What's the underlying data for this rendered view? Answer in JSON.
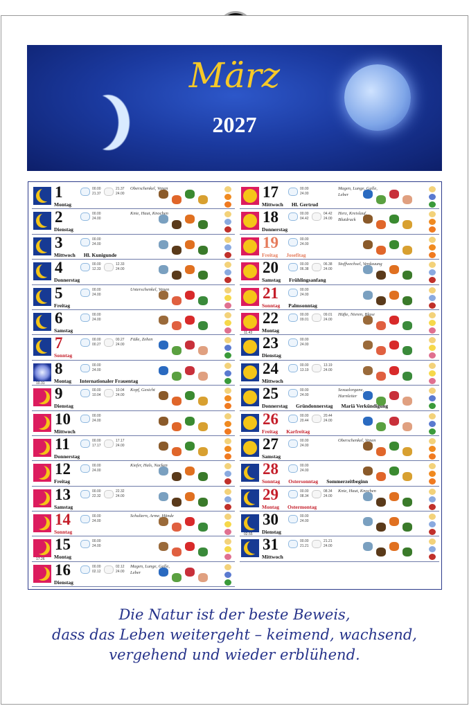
{
  "header": {
    "month": "März",
    "year": "2027"
  },
  "quote": [
    "Die Natur ist der beste Beweis,",
    "dass das Leben weitergeht – keimend, wachsend,",
    "vergehend und wieder erblühend."
  ],
  "colors": {
    "banner": "#1b3aa0",
    "title": "#f6c928",
    "phase_blue": "#173a93",
    "phase_pink": "#dc1c5e",
    "holiday_red": "#c41e2a",
    "quote": "#26338a"
  },
  "days": [
    {
      "d": "1",
      "wd": "Montag",
      "ph": "blue",
      "t1": [
        "00.00",
        "21.37"
      ],
      "t2": [
        "21.37",
        "24.00"
      ],
      "body": "Oberschenkel, Venen",
      "el": "fire"
    },
    {
      "d": "2",
      "wd": "Dienstag",
      "ph": "blue",
      "t1": [
        "00.00",
        "24.00"
      ],
      "body": "Knie, Haut, Knochen",
      "el": "earth"
    },
    {
      "d": "3",
      "wd": "Mittwoch",
      "ph": "blue",
      "hol": [
        {
          "text": "Hl. Kunigunde"
        }
      ],
      "t1": [
        "00.00",
        "24.00"
      ],
      "el": "earth"
    },
    {
      "d": "4",
      "wd": "Donnerstag",
      "ph": "blue",
      "t1": [
        "00.00",
        "12.33"
      ],
      "t2": [
        "12.33",
        "24.00"
      ],
      "el": "earth"
    },
    {
      "d": "5",
      "wd": "Freitag",
      "ph": "blue",
      "t1": [
        "00.00",
        "24.00"
      ],
      "body": "Unterschenkel, Venen",
      "el": "air"
    },
    {
      "d": "6",
      "wd": "Samstag",
      "ph": "blue",
      "t1": [
        "00.00",
        "24.00"
      ],
      "el": "air"
    },
    {
      "d": "7",
      "wd": "Sonntag",
      "red": "red",
      "ph": "blue",
      "t1": [
        "00.00",
        "00.27"
      ],
      "t2": [
        "00.27",
        "24.00"
      ],
      "body": "Füße, Zehen",
      "el": "water"
    },
    {
      "d": "8",
      "wd": "Montag",
      "ph": "full",
      "mt": "10.31",
      "hol": [
        {
          "text": "Internationaler Frauentag"
        }
      ],
      "t1": [
        "00.00",
        "24.00"
      ],
      "el": "water"
    },
    {
      "d": "9",
      "wd": "Dienstag",
      "ph": "pink",
      "t1": [
        "00.00",
        "10.04"
      ],
      "t2": [
        "10.04",
        "24.00"
      ],
      "body": "Kopf, Gesicht",
      "el": "fire"
    },
    {
      "d": "10",
      "wd": "Mittwoch",
      "ph": "pink",
      "t1": [
        "00.00",
        "24.00"
      ],
      "el": "fire"
    },
    {
      "d": "11",
      "wd": "Donnerstag",
      "ph": "pink",
      "t1": [
        "00.00",
        "17.17"
      ],
      "t2": [
        "17.17",
        "24.00"
      ],
      "el": "fire"
    },
    {
      "d": "12",
      "wd": "Freitag",
      "ph": "pink",
      "t1": [
        "00.00",
        "24.00"
      ],
      "body": "Kiefer, Hals, Nacken",
      "el": "earth"
    },
    {
      "d": "13",
      "wd": "Samstag",
      "ph": "pink",
      "t1": [
        "00.00",
        "22.32"
      ],
      "t2": [
        "22.32",
        "24.00"
      ],
      "el": "earth"
    },
    {
      "d": "14",
      "wd": "Sonntag",
      "red": "red",
      "ph": "pink",
      "t1": [
        "00.00",
        "24.00"
      ],
      "body": "Schultern, Arme, Hände",
      "el": "air"
    },
    {
      "d": "15",
      "wd": "Montag",
      "ph": "pink",
      "mt": "17.26",
      "t1": [
        "00.00",
        "24.00"
      ],
      "el": "air"
    },
    {
      "d": "16",
      "wd": "Dienstag",
      "ph": "pink",
      "t1": [
        "00.00",
        "02.12"
      ],
      "t2": [
        "02.12",
        "24.00"
      ],
      "body": "Magen, Lunge, Galle, Leber",
      "el": "water"
    },
    {
      "d": "17",
      "wd": "Mittwoch",
      "ph": "pink2",
      "hol": [
        {
          "text": "Hl. Gertrud"
        }
      ],
      "t1": [
        "00.00",
        "24.00"
      ],
      "body": "Magen, Lunge, Galle, Leber",
      "el": "water"
    },
    {
      "d": "18",
      "wd": "Donnerstag",
      "ph": "pink2",
      "t1": [
        "00.00",
        "04.42"
      ],
      "t2": [
        "04.42",
        "24.00"
      ],
      "body": "Herz, Kreislauf, Blutdruck",
      "el": "fire"
    },
    {
      "d": "19",
      "wd": "Freitag",
      "red": "sal",
      "ph": "pink2",
      "hol": [
        {
          "text": "Josefitag",
          "red": "sal"
        }
      ],
      "t1": [
        "00.00",
        "24.00"
      ],
      "el": "fire"
    },
    {
      "d": "20",
      "wd": "Samstag",
      "ph": "pink2",
      "hol": [
        {
          "text": "Frühlingsanfang"
        }
      ],
      "t1": [
        "00.00",
        "06.38"
      ],
      "t2": [
        "06.38",
        "24.00"
      ],
      "body": "Stoffwechsel, Verdauung",
      "el": "earth"
    },
    {
      "d": "21",
      "wd": "Sonntag",
      "red": "red",
      "ph": "pink2",
      "hol": [
        {
          "text": "Palmsonntag"
        }
      ],
      "t1": [
        "00.00",
        "24.00"
      ],
      "el": "earth"
    },
    {
      "d": "22",
      "wd": "Montag",
      "ph": "pink2",
      "mt": "11.43",
      "t1": [
        "00.00",
        "09.01"
      ],
      "t2": [
        "09.01",
        "24.00"
      ],
      "body": "Hüfte, Nieren, Blase",
      "el": "air"
    },
    {
      "d": "23",
      "wd": "Dienstag",
      "ph": "blue2",
      "t1": [
        "00.00",
        "24.00"
      ],
      "el": "air"
    },
    {
      "d": "24",
      "wd": "Mittwoch",
      "ph": "blue2",
      "t1": [
        "00.00",
        "13.19"
      ],
      "t2": [
        "13.19",
        "24.00"
      ],
      "el": "air"
    },
    {
      "d": "25",
      "wd": "Donnerstag",
      "ph": "blue2",
      "hol": [
        {
          "text": "Gründonnerstag"
        },
        {
          "text": "Mariä Verkündigung"
        }
      ],
      "t1": [
        "00.00",
        "24.00"
      ],
      "body": "Sexualorgane, Harnleiter",
      "el": "water"
    },
    {
      "d": "26",
      "wd": "Freitag",
      "red": "red",
      "ph": "blue2",
      "hol": [
        {
          "text": "Karfreitag",
          "red": "red"
        }
      ],
      "t1": [
        "00.00",
        "20.44"
      ],
      "t2": [
        "20.44",
        "24.00"
      ],
      "el": "water"
    },
    {
      "d": "27",
      "wd": "Samstag",
      "ph": "blue2",
      "t1": [
        "00.00",
        "24.00"
      ],
      "body": "Oberschenkel, Venen",
      "el": "fire"
    },
    {
      "d": "28",
      "wd": "Sonntag",
      "red": "red",
      "ph": "blue",
      "hol": [
        {
          "text": "Ostersonntag",
          "red": "red"
        },
        {
          "text": "Sommerzeitbeginn"
        }
      ],
      "t1": [
        "00.00",
        "24.00"
      ],
      "el": "fire"
    },
    {
      "d": "29",
      "wd": "Montag",
      "red": "red",
      "ph": "blue",
      "hol": [
        {
          "text": "Ostermontag",
          "red": "red"
        }
      ],
      "t1": [
        "00.00",
        "08.34"
      ],
      "t2": [
        "08.34",
        "24.00"
      ],
      "body": "Knie, Haut, Knochen",
      "el": "earth"
    },
    {
      "d": "30",
      "wd": "Dienstag",
      "ph": "blue",
      "mt": "02.55",
      "t1": [
        "00.00",
        "24.00"
      ],
      "el": "earth"
    },
    {
      "d": "31",
      "wd": "Mittwoch",
      "ph": "blue",
      "t1": [
        "00.00",
        "21.21"
      ],
      "t2": [
        "21.21",
        "24.00"
      ],
      "el": "earth"
    }
  ]
}
